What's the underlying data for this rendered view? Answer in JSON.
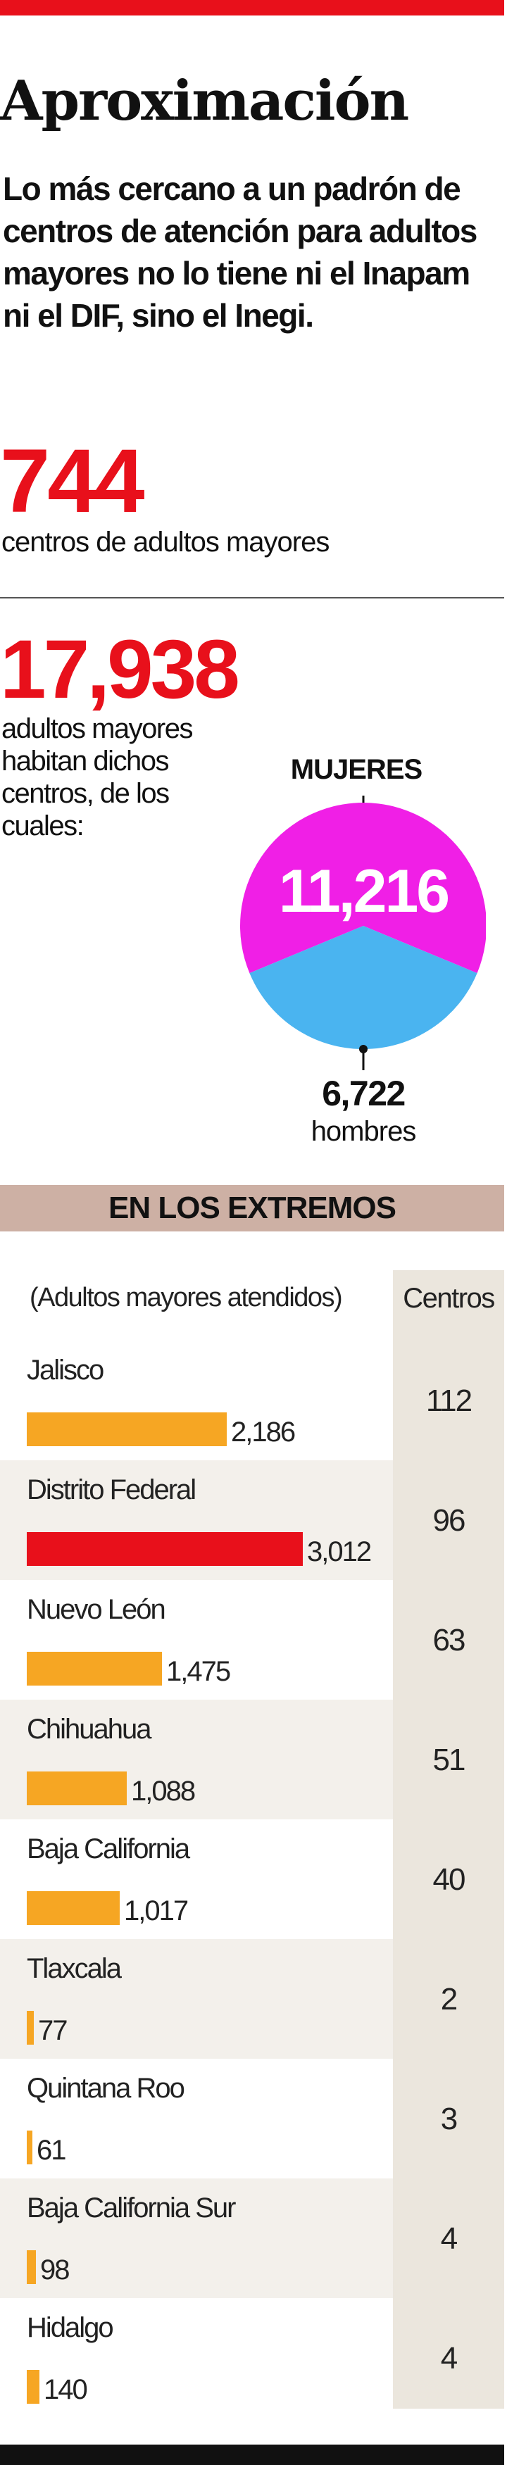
{
  "header": {
    "title": "Aproximación",
    "intro": "Lo más cercano a un padrón de centros de atención para adultos mayores no lo tiene ni el Inapam ni el DIF, sino el Inegi."
  },
  "stats": {
    "centers_value": "744",
    "centers_caption": "centros de adultos mayores",
    "residents_value": "17,938",
    "residents_caption": "adultos mayores habitan dichos centros, de los cuales:"
  },
  "pie": {
    "women_label": "MUJERES",
    "women_value": "11,216",
    "men_value": "6,722",
    "men_label": "hombres"
  },
  "section": {
    "band_title": "EN LOS EXTREMOS",
    "left_header": "(Adultos mayores atendidos)",
    "right_header": "Centros"
  },
  "colors": {
    "red": "#e8101b",
    "orange": "#f6a623",
    "women": "#f01fe6",
    "men": "#4ab4f0",
    "band": "#cdb0a4"
  },
  "chart_data": [
    {
      "type": "pie",
      "categories": [
        "Mujeres",
        "Hombres"
      ],
      "values": [
        11216,
        6722
      ]
    },
    {
      "type": "bar",
      "categories": [
        "Jalisco",
        "Distrito Federal",
        "Nuevo León",
        "Chihuahua",
        "Baja California",
        "Tlaxcala",
        "Quintana Roo",
        "Baja California Sur",
        "Hidalgo"
      ],
      "series": [
        {
          "name": "Adultos mayores atendidos",
          "values": [
            2186,
            3012,
            1475,
            1088,
            1017,
            77,
            61,
            98,
            140
          ],
          "labels": [
            "2,186",
            "3,012",
            "1,475",
            "1,088",
            "1,017",
            "77",
            "61",
            "98",
            "140"
          ]
        },
        {
          "name": "Centros",
          "values": [
            112,
            96,
            63,
            51,
            40,
            2,
            3,
            4,
            4
          ]
        }
      ],
      "highlight_color": "#e8101b",
      "bar_color": "#f6a623"
    }
  ]
}
